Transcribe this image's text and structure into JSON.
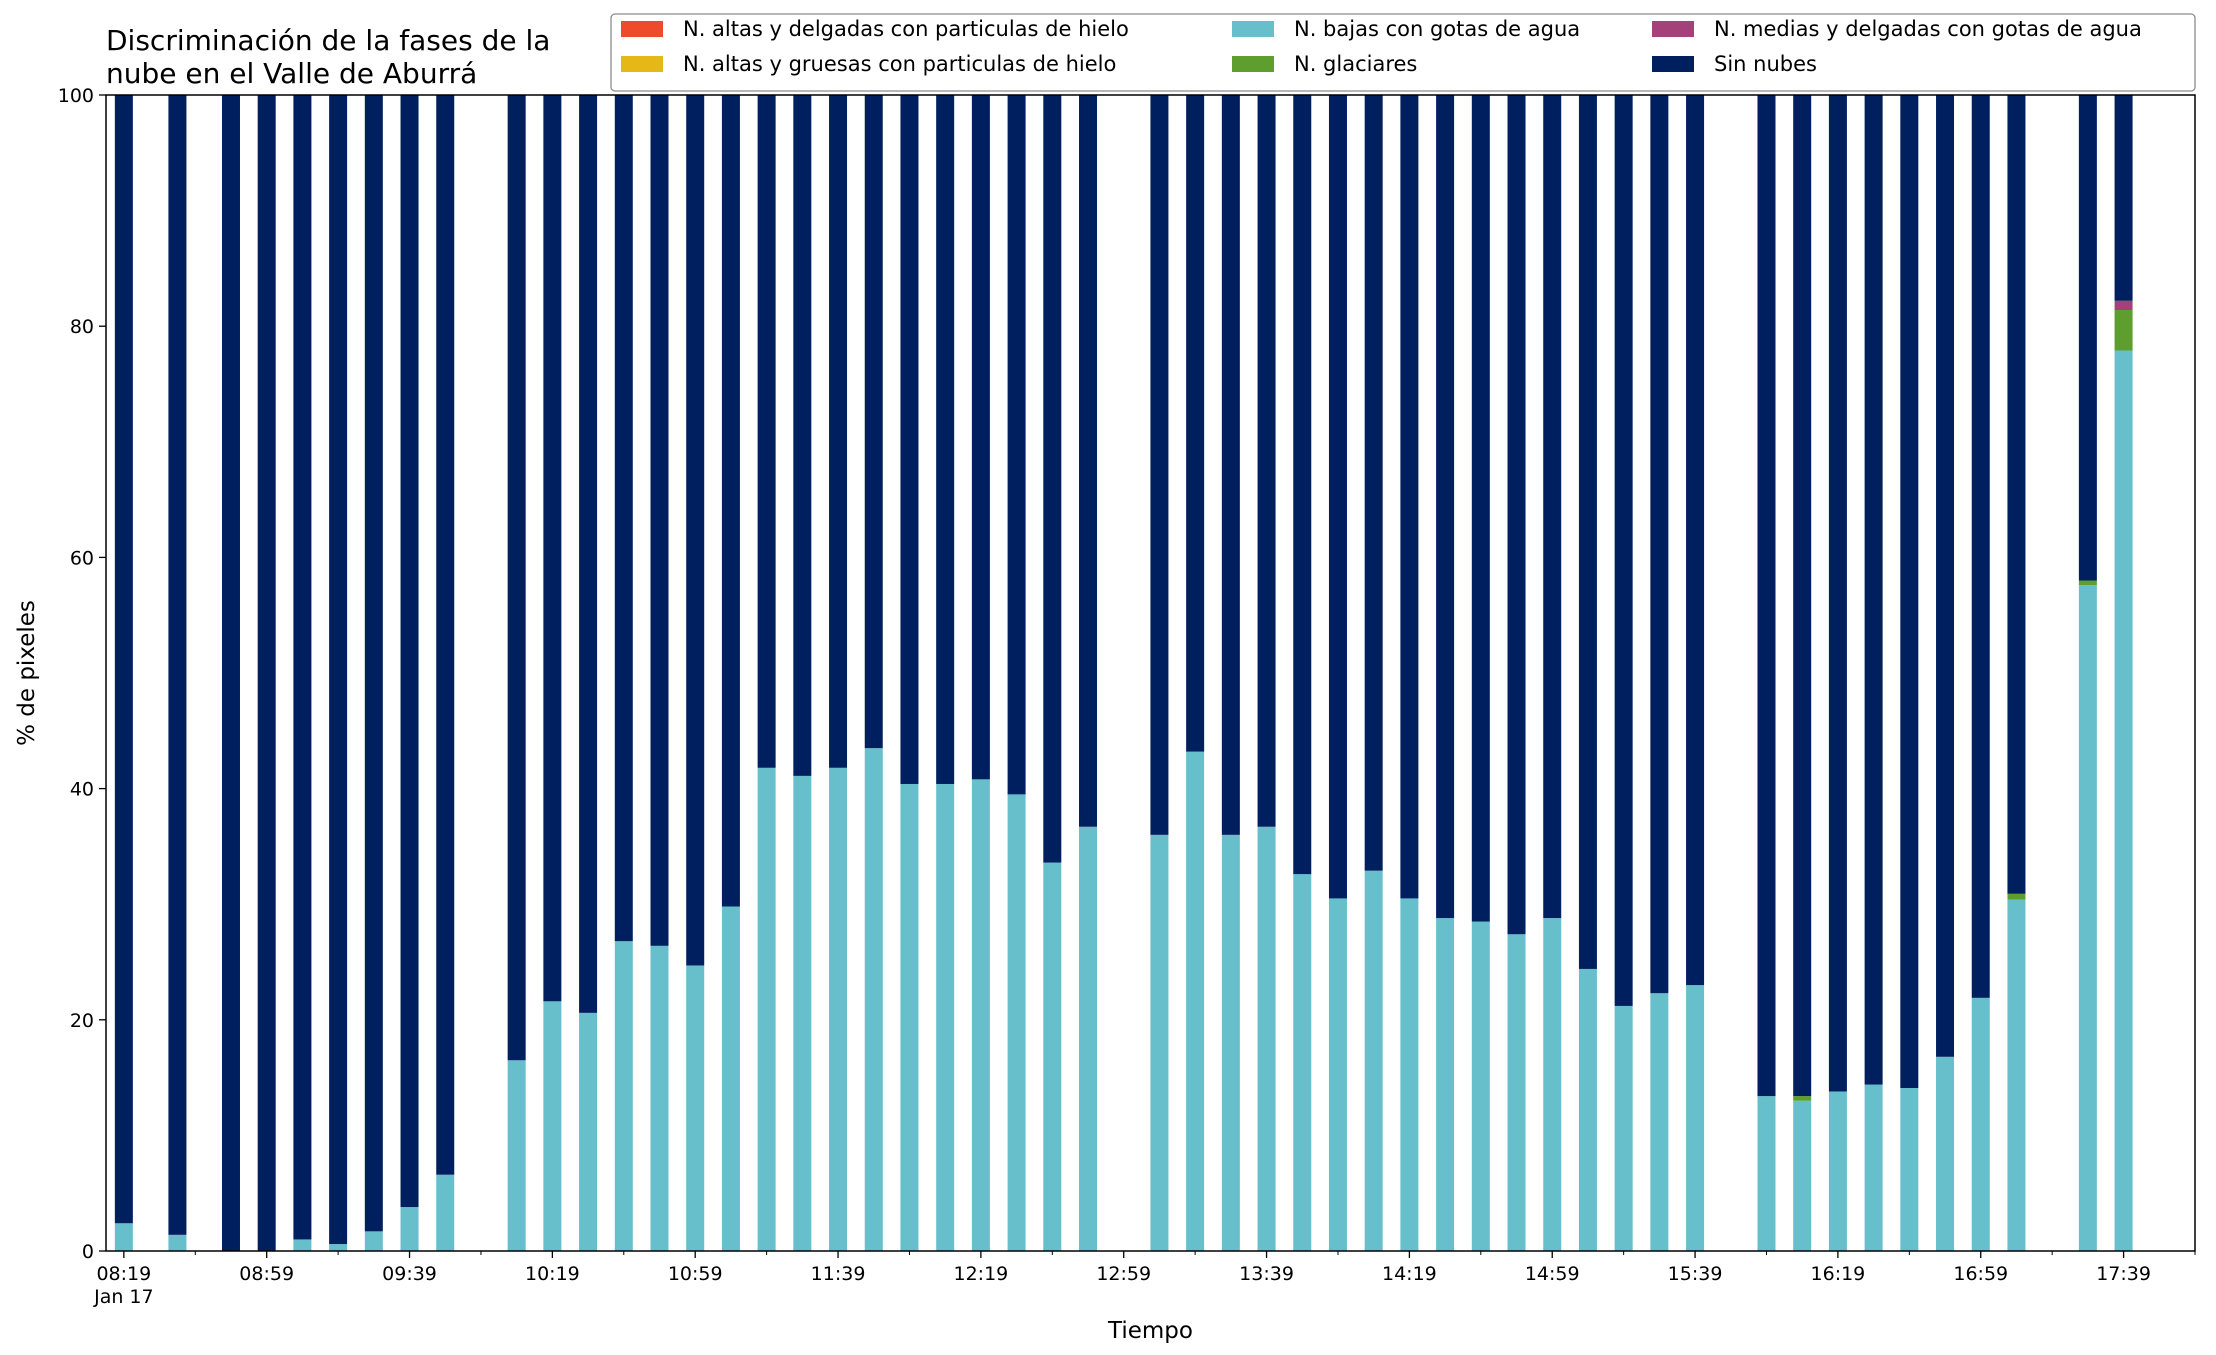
{
  "chart_data": {
    "type": "bar",
    "stacked": true,
    "title": "Discriminación de la fases de la nube en el Valle de Aburrá",
    "title_lines": [
      "Discriminación de la fases de la",
      "nube en el Valle de Aburrá"
    ],
    "xlabel": "Tiempo",
    "ylabel": "% de pixeles",
    "ylim": [
      0,
      100
    ],
    "yticks": [
      0,
      20,
      40,
      60,
      80,
      100
    ],
    "xlim": [
      "08:14",
      "17:59"
    ],
    "date_label": "Jan 17",
    "x_major_ticks": [
      "08:19",
      "08:59",
      "09:39",
      "10:19",
      "10:59",
      "11:39",
      "12:19",
      "12:59",
      "13:39",
      "14:19",
      "14:59",
      "15:39",
      "16:19",
      "16:59",
      "17:39"
    ],
    "x_minor_ticks": [
      "08:39",
      "09:19",
      "09:59",
      "10:39",
      "11:19",
      "11:59",
      "12:39",
      "13:19",
      "13:59",
      "14:39",
      "15:19",
      "15:59",
      "16:39",
      "17:19",
      "17:59"
    ],
    "grid": false,
    "legend_position": "top-right",
    "colors": {
      "altas_delgadas_hielo": "#ee4b2b",
      "altas_gruesas_hielo": "#e6b817",
      "bajas_agua": "#67bfcb",
      "glaciares": "#5e9e2e",
      "medias_delgadas_agua": "#a5417a",
      "sin_nubes": "#001f5e"
    },
    "legend": [
      {
        "key": "altas_delgadas_hielo",
        "label": "N. altas y delgadas con particulas de hielo"
      },
      {
        "key": "altas_gruesas_hielo",
        "label": "N. altas y gruesas con particulas de hielo"
      },
      {
        "key": "bajas_agua",
        "label": "N. bajas con gotas de agua"
      },
      {
        "key": "glaciares",
        "label": "N. glaciares"
      },
      {
        "key": "medias_delgadas_agua",
        "label": "N. medias y delgadas con gotas de agua"
      },
      {
        "key": "sin_nubes",
        "label": "Sin nubes"
      }
    ],
    "bars": [
      {
        "time": "08:19",
        "bajas_agua": 2.4,
        "glaciares": 0,
        "medias_delgadas_agua": 0,
        "sin_nubes": 97.6
      },
      {
        "time": "08:34",
        "bajas_agua": 1.4,
        "glaciares": 0,
        "medias_delgadas_agua": 0,
        "sin_nubes": 98.6
      },
      {
        "time": "08:49",
        "bajas_agua": 0,
        "glaciares": 0,
        "medias_delgadas_agua": 0,
        "sin_nubes": 100
      },
      {
        "time": "08:59",
        "bajas_agua": 0,
        "glaciares": 0,
        "medias_delgadas_agua": 0,
        "sin_nubes": 100
      },
      {
        "time": "09:09",
        "bajas_agua": 1.0,
        "glaciares": 0,
        "medias_delgadas_agua": 0,
        "sin_nubes": 99.0
      },
      {
        "time": "09:19",
        "bajas_agua": 0.6,
        "glaciares": 0,
        "medias_delgadas_agua": 0,
        "sin_nubes": 99.4
      },
      {
        "time": "09:29",
        "bajas_agua": 1.7,
        "glaciares": 0,
        "medias_delgadas_agua": 0,
        "sin_nubes": 98.3
      },
      {
        "time": "09:39",
        "bajas_agua": 3.8,
        "glaciares": 0,
        "medias_delgadas_agua": 0,
        "sin_nubes": 96.2
      },
      {
        "time": "09:49",
        "bajas_agua": 6.6,
        "glaciares": 0,
        "medias_delgadas_agua": 0,
        "sin_nubes": 93.4
      },
      {
        "time": "10:09",
        "bajas_agua": 16.5,
        "glaciares": 0,
        "medias_delgadas_agua": 0,
        "sin_nubes": 83.5
      },
      {
        "time": "10:19",
        "bajas_agua": 21.6,
        "glaciares": 0,
        "medias_delgadas_agua": 0,
        "sin_nubes": 78.4
      },
      {
        "time": "10:29",
        "bajas_agua": 20.6,
        "glaciares": 0,
        "medias_delgadas_agua": 0,
        "sin_nubes": 79.4
      },
      {
        "time": "10:39",
        "bajas_agua": 26.8,
        "glaciares": 0,
        "medias_delgadas_agua": 0,
        "sin_nubes": 73.2
      },
      {
        "time": "10:49",
        "bajas_agua": 26.4,
        "glaciares": 0,
        "medias_delgadas_agua": 0,
        "sin_nubes": 73.6
      },
      {
        "time": "10:59",
        "bajas_agua": 24.7,
        "glaciares": 0,
        "medias_delgadas_agua": 0,
        "sin_nubes": 75.3
      },
      {
        "time": "11:09",
        "bajas_agua": 29.8,
        "glaciares": 0,
        "medias_delgadas_agua": 0,
        "sin_nubes": 70.2
      },
      {
        "time": "11:19",
        "bajas_agua": 41.8,
        "glaciares": 0,
        "medias_delgadas_agua": 0,
        "sin_nubes": 58.2
      },
      {
        "time": "11:29",
        "bajas_agua": 41.1,
        "glaciares": 0,
        "medias_delgadas_agua": 0,
        "sin_nubes": 58.9
      },
      {
        "time": "11:39",
        "bajas_agua": 41.8,
        "glaciares": 0,
        "medias_delgadas_agua": 0,
        "sin_nubes": 58.2
      },
      {
        "time": "11:49",
        "bajas_agua": 43.5,
        "glaciares": 0,
        "medias_delgadas_agua": 0,
        "sin_nubes": 56.5
      },
      {
        "time": "11:59",
        "bajas_agua": 40.4,
        "glaciares": 0,
        "medias_delgadas_agua": 0,
        "sin_nubes": 59.6
      },
      {
        "time": "12:09",
        "bajas_agua": 40.4,
        "glaciares": 0,
        "medias_delgadas_agua": 0,
        "sin_nubes": 59.6
      },
      {
        "time": "12:19",
        "bajas_agua": 40.8,
        "glaciares": 0,
        "medias_delgadas_agua": 0,
        "sin_nubes": 59.2
      },
      {
        "time": "12:29",
        "bajas_agua": 39.5,
        "glaciares": 0,
        "medias_delgadas_agua": 0,
        "sin_nubes": 60.5
      },
      {
        "time": "12:39",
        "bajas_agua": 33.6,
        "glaciares": 0,
        "medias_delgadas_agua": 0,
        "sin_nubes": 66.4
      },
      {
        "time": "12:49",
        "bajas_agua": 36.7,
        "glaciares": 0,
        "medias_delgadas_agua": 0,
        "sin_nubes": 63.3
      },
      {
        "time": "13:09",
        "bajas_agua": 36.0,
        "glaciares": 0,
        "medias_delgadas_agua": 0,
        "sin_nubes": 64.0
      },
      {
        "time": "13:19",
        "bajas_agua": 43.2,
        "glaciares": 0,
        "medias_delgadas_agua": 0,
        "sin_nubes": 56.8
      },
      {
        "time": "13:29",
        "bajas_agua": 36.0,
        "glaciares": 0,
        "medias_delgadas_agua": 0,
        "sin_nubes": 64.0
      },
      {
        "time": "13:39",
        "bajas_agua": 36.7,
        "glaciares": 0,
        "medias_delgadas_agua": 0,
        "sin_nubes": 63.3
      },
      {
        "time": "13:49",
        "bajas_agua": 32.6,
        "glaciares": 0,
        "medias_delgadas_agua": 0,
        "sin_nubes": 67.4
      },
      {
        "time": "13:59",
        "bajas_agua": 30.5,
        "glaciares": 0,
        "medias_delgadas_agua": 0,
        "sin_nubes": 69.5
      },
      {
        "time": "14:09",
        "bajas_agua": 32.9,
        "glaciares": 0,
        "medias_delgadas_agua": 0,
        "sin_nubes": 67.1
      },
      {
        "time": "14:19",
        "bajas_agua": 30.5,
        "glaciares": 0,
        "medias_delgadas_agua": 0,
        "sin_nubes": 69.5
      },
      {
        "time": "14:29",
        "bajas_agua": 28.8,
        "glaciares": 0,
        "medias_delgadas_agua": 0,
        "sin_nubes": 71.2
      },
      {
        "time": "14:39",
        "bajas_agua": 28.5,
        "glaciares": 0,
        "medias_delgadas_agua": 0,
        "sin_nubes": 71.5
      },
      {
        "time": "14:49",
        "bajas_agua": 27.4,
        "glaciares": 0,
        "medias_delgadas_agua": 0,
        "sin_nubes": 72.6
      },
      {
        "time": "14:59",
        "bajas_agua": 28.8,
        "glaciares": 0,
        "medias_delgadas_agua": 0,
        "sin_nubes": 71.2
      },
      {
        "time": "15:09",
        "bajas_agua": 24.4,
        "glaciares": 0,
        "medias_delgadas_agua": 0,
        "sin_nubes": 75.6
      },
      {
        "time": "15:19",
        "bajas_agua": 21.2,
        "glaciares": 0,
        "medias_delgadas_agua": 0,
        "sin_nubes": 78.8
      },
      {
        "time": "15:29",
        "bajas_agua": 22.3,
        "glaciares": 0,
        "medias_delgadas_agua": 0,
        "sin_nubes": 77.7
      },
      {
        "time": "15:39",
        "bajas_agua": 23.0,
        "glaciares": 0,
        "medias_delgadas_agua": 0,
        "sin_nubes": 77.0
      },
      {
        "time": "15:59",
        "bajas_agua": 13.4,
        "glaciares": 0,
        "medias_delgadas_agua": 0,
        "sin_nubes": 86.6
      },
      {
        "time": "16:09",
        "bajas_agua": 13.0,
        "glaciares": 0.4,
        "medias_delgadas_agua": 0,
        "sin_nubes": 86.6
      },
      {
        "time": "16:19",
        "bajas_agua": 13.8,
        "glaciares": 0,
        "medias_delgadas_agua": 0,
        "sin_nubes": 86.2
      },
      {
        "time": "16:29",
        "bajas_agua": 14.4,
        "glaciares": 0,
        "medias_delgadas_agua": 0,
        "sin_nubes": 85.6
      },
      {
        "time": "16:39",
        "bajas_agua": 14.1,
        "glaciares": 0,
        "medias_delgadas_agua": 0,
        "sin_nubes": 85.9
      },
      {
        "time": "16:49",
        "bajas_agua": 16.8,
        "glaciares": 0,
        "medias_delgadas_agua": 0,
        "sin_nubes": 83.2
      },
      {
        "time": "16:59",
        "bajas_agua": 21.9,
        "glaciares": 0,
        "medias_delgadas_agua": 0,
        "sin_nubes": 78.1
      },
      {
        "time": "17:09",
        "bajas_agua": 30.4,
        "glaciares": 0.5,
        "medias_delgadas_agua": 0,
        "sin_nubes": 69.1
      },
      {
        "time": "17:29",
        "bajas_agua": 57.6,
        "glaciares": 0.4,
        "medias_delgadas_agua": 0,
        "sin_nubes": 42.0
      },
      {
        "time": "17:39",
        "bajas_agua": 77.9,
        "glaciares": 3.5,
        "medias_delgadas_agua": 0.8,
        "sin_nubes": 17.8
      }
    ]
  }
}
